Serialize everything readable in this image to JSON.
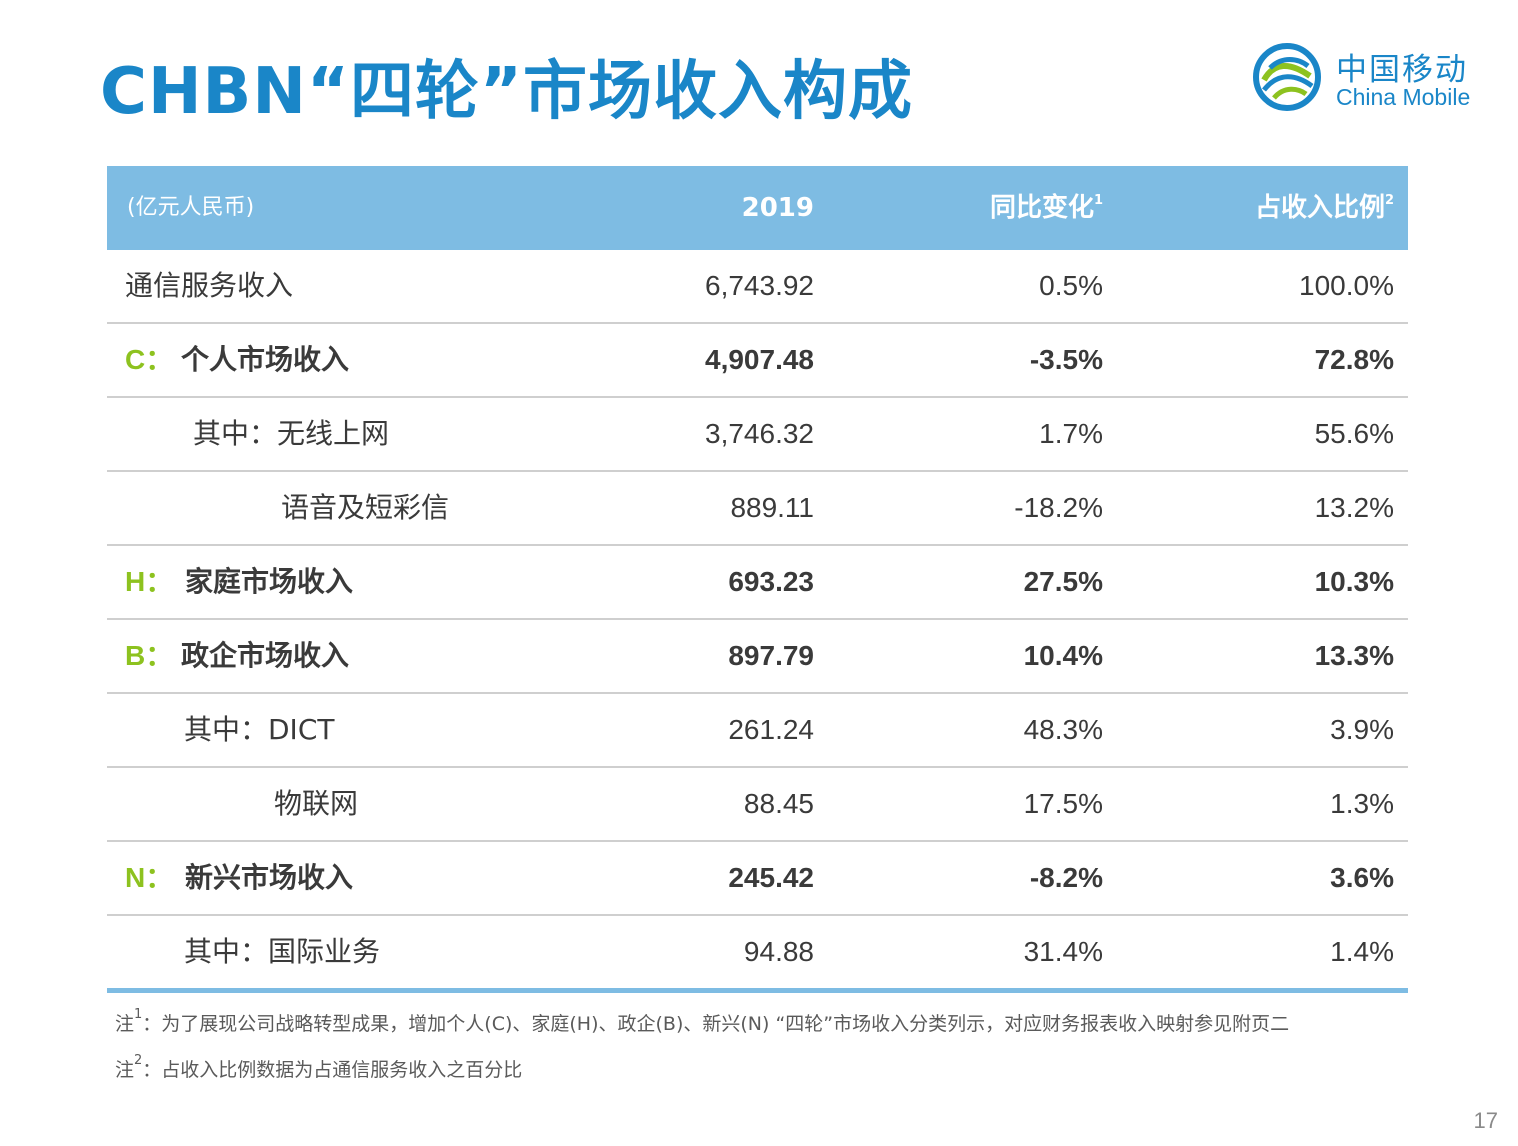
{
  "title": "CHBN“四轮”市场收入构成",
  "logo": {
    "cn": "中国移动",
    "en": "China Mobile",
    "icon": "china-mobile-logo-icon"
  },
  "colors": {
    "title": "#1a86c8",
    "header_bg": "#7ebce3",
    "segment_letter": "#8dc21f"
  },
  "header": {
    "unit": "(亿元人民币)",
    "year": "2019",
    "yoy": "同比变化",
    "yoy_sup": "1",
    "share": "占收入比例",
    "share_sup": "2"
  },
  "rows": [
    {
      "letter": "",
      "label": "通信服务收入",
      "value": "6,743.92",
      "yoy": "0.5%",
      "share": "100.0%"
    },
    {
      "letter": "C：",
      "label": "个人市场收入",
      "value": "4,907.48",
      "yoy": "-3.5%",
      "share": "72.8%"
    },
    {
      "letter": "",
      "label": "其中：无线上网",
      "value": "3,746.32",
      "yoy": "1.7%",
      "share": "55.6%"
    },
    {
      "letter": "",
      "label": "语音及短彩信",
      "value": "889.11",
      "yoy": "-18.2%",
      "share": "13.2%"
    },
    {
      "letter": "H：",
      "label": "家庭市场收入",
      "value": "693.23",
      "yoy": "27.5%",
      "share": "10.3%"
    },
    {
      "letter": "B：",
      "label": "政企市场收入",
      "value": "897.79",
      "yoy": "10.4%",
      "share": "13.3%"
    },
    {
      "letter": "",
      "label": "其中：DICT",
      "value": "261.24",
      "yoy": "48.3%",
      "share": "3.9%"
    },
    {
      "letter": "",
      "label": "物联网",
      "value": "88.45",
      "yoy": "17.5%",
      "share": "1.3%"
    },
    {
      "letter": "N：",
      "label": "新兴市场收入",
      "value": "245.42",
      "yoy": "-8.2%",
      "share": "3.6%"
    },
    {
      "letter": "",
      "label": "其中：国际业务",
      "value": "94.88",
      "yoy": "31.4%",
      "share": "1.4%"
    }
  ],
  "notes": [
    {
      "prefix": "注",
      "sup": "1",
      "text": "：为了展现公司战略转型成果，增加个人(C)、家庭(H)、政企(B)、新兴(N) “四轮”市场收入分类列示，对应财务报表收入映射参见附页二"
    },
    {
      "prefix": "注",
      "sup": "2",
      "text": "：占收入比例数据为占通信服务收入之百分比"
    }
  ],
  "page_number": "17"
}
